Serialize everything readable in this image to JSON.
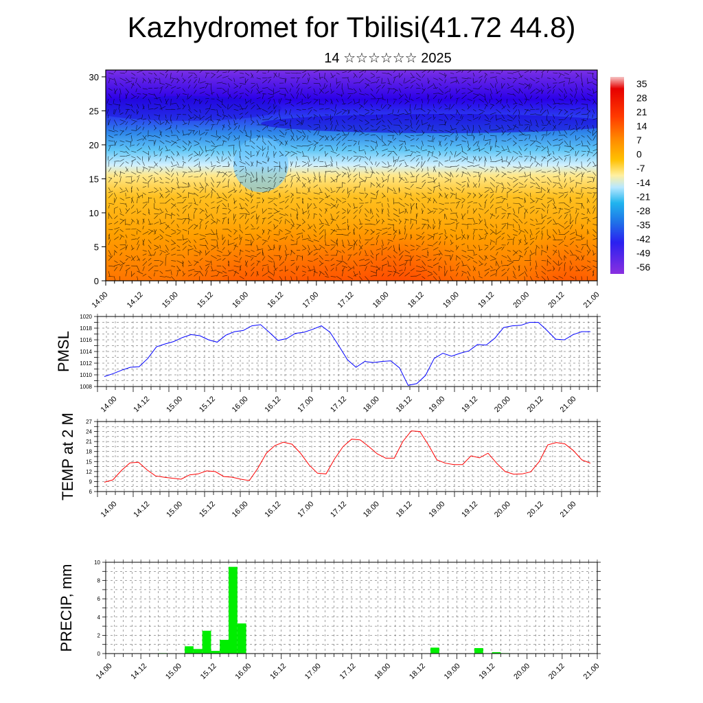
{
  "header": {
    "title": "Kazhydromet for Tbilisi(41.72 44.8)",
    "subtitle": "14 ☆☆☆☆☆☆ 2025"
  },
  "colors": {
    "pmsl_line": "#0000ff",
    "temp_line": "#ff0000",
    "precip_bar": "#00ee00",
    "grid": "#444444"
  },
  "chart_data": [
    {
      "type": "heatmap",
      "title": "",
      "xlabel": "",
      "ylabel": "",
      "x_ticks": [
        "14.00",
        "14.12",
        "15.00",
        "15.12",
        "16.00",
        "16.12",
        "17.00",
        "17.12",
        "18.00",
        "18.12",
        "19.00",
        "19.12",
        "20.00",
        "20.12",
        "21.00"
      ],
      "y_ticks": [
        0,
        5,
        10,
        15,
        20,
        25,
        30
      ],
      "ylim": [
        0,
        31
      ],
      "colorbar": {
        "labels": [
          "35",
          "28",
          "21",
          "14",
          "7",
          "0",
          "-7",
          "-14",
          "-21",
          "-28",
          "-35",
          "-42",
          "-49",
          "-56"
        ],
        "colors": [
          "#f7c0c0",
          "#e80000",
          "#ff2a00",
          "#ff5a00",
          "#ff8a00",
          "#ffb000",
          "#ffd84a",
          "#fff0b0",
          "#a8e4ff",
          "#20b4ee",
          "#1f78e8",
          "#2a3cf0",
          "#2000f0",
          "#8a30e0"
        ]
      },
      "overlay": "wind vectors"
    },
    {
      "type": "line",
      "ylabel": "PMSL",
      "x_ticks": [
        "14.00",
        "14.12",
        "15.00",
        "15.12",
        "16.00",
        "16.12",
        "17.00",
        "17.12",
        "18.00",
        "18.12",
        "19.00",
        "19.12",
        "20.00",
        "20.12",
        "21.00"
      ],
      "ylim": [
        1008,
        1020
      ],
      "y_ticks": [
        1008,
        1010,
        1012,
        1014,
        1016,
        1018,
        1020
      ],
      "grid": true,
      "series": [
        {
          "values": [
            1009.7,
            1010.2,
            1010.8,
            1011.3,
            1011.4,
            1012.8,
            1014.8,
            1015.3,
            1015.7,
            1016.4,
            1016.9,
            1016.7,
            1016.0,
            1015.6,
            1016.8,
            1017.4,
            1017.6,
            1018.4,
            1018.6,
            1017.3,
            1015.9,
            1016.2,
            1017.1,
            1017.3,
            1017.8,
            1018.4,
            1017.3,
            1015.0,
            1012.6,
            1011.3,
            1012.3,
            1012.1,
            1012.3,
            1012.4,
            1011.2,
            1008.2,
            1008.5,
            1009.9,
            1012.8,
            1013.7,
            1013.2,
            1013.7,
            1014.1,
            1015.2,
            1015.1,
            1016.3,
            1018.1,
            1018.4,
            1018.5,
            1019.0,
            1019.0,
            1017.6,
            1016.1,
            1016.0,
            1016.9,
            1017.4,
            1017.4
          ]
        }
      ]
    },
    {
      "type": "line",
      "ylabel": "TEMP at 2 M",
      "x_ticks": [
        "14.00",
        "14.12",
        "15.00",
        "15.12",
        "16.00",
        "16.12",
        "17.00",
        "17.12",
        "18.00",
        "18.12",
        "19.00",
        "19.12",
        "20.00",
        "20.12",
        "21.00"
      ],
      "ylim": [
        6,
        27
      ],
      "y_ticks": [
        6,
        9,
        12,
        15,
        18,
        21,
        24,
        27
      ],
      "grid": true,
      "series": [
        {
          "values": [
            8.8,
            9.5,
            12.3,
            14.6,
            14.8,
            12.5,
            10.7,
            10.3,
            10.0,
            9.7,
            11.0,
            11.3,
            12.2,
            12.0,
            10.5,
            10.3,
            9.7,
            9.3,
            13.0,
            17.5,
            19.8,
            20.8,
            20.2,
            17.5,
            14.0,
            11.5,
            11.3,
            15.8,
            19.5,
            21.7,
            21.5,
            19.5,
            17.3,
            16.0,
            16.0,
            21.0,
            24.2,
            24.0,
            20.0,
            15.5,
            14.5,
            14.1,
            14.1,
            16.7,
            16.1,
            17.5,
            14.5,
            12.0,
            11.2,
            11.3,
            11.9,
            15.0,
            20.0,
            20.7,
            20.3,
            18.3,
            15.5,
            14.5
          ]
        }
      ]
    },
    {
      "type": "bar",
      "ylabel": "PRECIP, mm",
      "x_ticks": [
        "14.00",
        "14.12",
        "15.00",
        "15.12",
        "16.00",
        "16.12",
        "17.00",
        "17.12",
        "18.00",
        "18.12",
        "19.00",
        "19.12",
        "20.00",
        "20.12",
        "21.00"
      ],
      "ylim": [
        0,
        10
      ],
      "y_ticks": [
        0,
        2,
        4,
        6,
        8,
        10
      ],
      "grid": true,
      "bars": [
        {
          "x": 6.5,
          "value": 0.05
        },
        {
          "x": 7,
          "value": 0.03
        },
        {
          "x": 9.5,
          "value": 0.8
        },
        {
          "x": 10.5,
          "value": 0.5
        },
        {
          "x": 11.5,
          "value": 2.5
        },
        {
          "x": 12.5,
          "value": 0.3
        },
        {
          "x": 13.5,
          "value": 1.5
        },
        {
          "x": 14.5,
          "value": 9.5
        },
        {
          "x": 15.5,
          "value": 3.3
        },
        {
          "x": 37.5,
          "value": 0.65
        },
        {
          "x": 39.5,
          "value": 0.03
        },
        {
          "x": 42.5,
          "value": 0.6
        },
        {
          "x": 44.5,
          "value": 0.15
        },
        {
          "x": 45.5,
          "value": 0.05
        }
      ]
    }
  ]
}
